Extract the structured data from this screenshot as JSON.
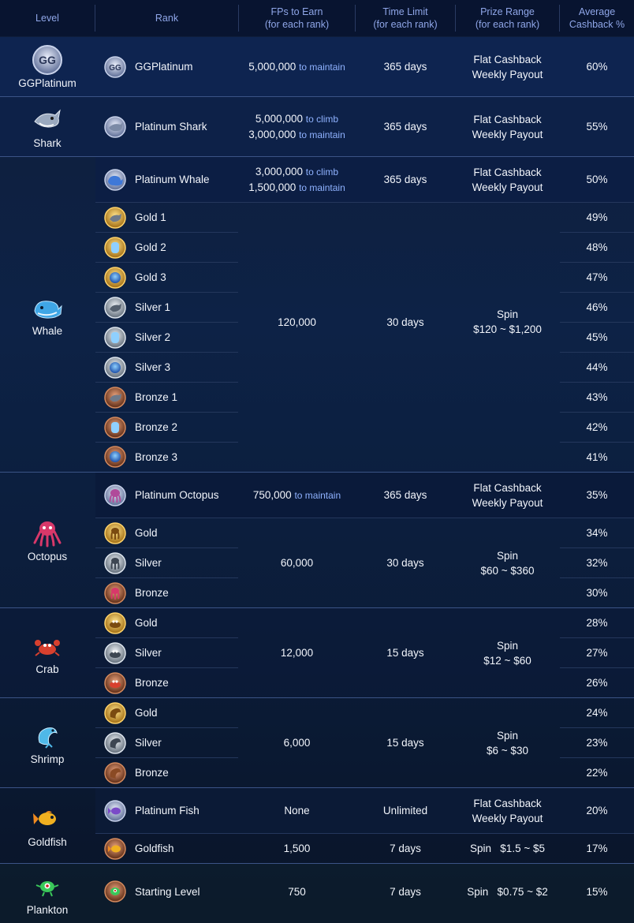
{
  "header": {
    "level": "Level",
    "rank": "Rank",
    "fps_1": "FPs to Earn",
    "fps_2": "(for each rank)",
    "time_1": "Time Limit",
    "time_2": "(for each rank)",
    "prize_1": "Prize Range",
    "prize_2": "(for each rank)",
    "cash_1": "Average",
    "cash_2": "Cashback %"
  },
  "levels": {
    "ggplatinum": "GGPlatinum",
    "shark": "Shark",
    "whale": "Whale",
    "octopus": "Octopus",
    "crab": "Crab",
    "shrimp": "Shrimp",
    "goldfish": "Goldfish",
    "plankton": "Plankton"
  },
  "rows": {
    "ggplatinum": {
      "rank": "GGPlatinum",
      "fps": "5,000,000",
      "fps_note": "to maintain",
      "time": "365 days",
      "prize_1": "Flat Cashback",
      "prize_2": "Weekly Payout",
      "cash": "60%"
    },
    "shark": {
      "rank": "Platinum Shark",
      "fps_a": "5,000,000",
      "fps_a_note": "to climb",
      "fps_b": "3,000,000",
      "fps_b_note": "to maintain",
      "time": "365 days",
      "prize_1": "Flat Cashback",
      "prize_2": "Weekly Payout",
      "cash": "55%"
    },
    "whale_plat": {
      "rank": "Platinum Whale",
      "fps_a": "3,000,000",
      "fps_a_note": "to climb",
      "fps_b": "1,500,000",
      "fps_b_note": "to maintain",
      "time": "365 days",
      "prize_1": "Flat Cashback",
      "prize_2": "Weekly Payout",
      "cash": "50%"
    },
    "whale_group": {
      "fps": "120,000",
      "time": "30 days",
      "prize_1": "Spin",
      "prize_2": "$120 ~ $1,200"
    },
    "whale_ranks": [
      {
        "rank": "Gold 1",
        "cash": "49%"
      },
      {
        "rank": "Gold 2",
        "cash": "48%"
      },
      {
        "rank": "Gold 3",
        "cash": "47%"
      },
      {
        "rank": "Silver 1",
        "cash": "46%"
      },
      {
        "rank": "Silver 2",
        "cash": "45%"
      },
      {
        "rank": "Silver 3",
        "cash": "44%"
      },
      {
        "rank": "Bronze 1",
        "cash": "43%"
      },
      {
        "rank": "Bronze 2",
        "cash": "42%"
      },
      {
        "rank": "Bronze 3",
        "cash": "41%"
      }
    ],
    "octo_plat": {
      "rank": "Platinum Octopus",
      "fps": "750,000",
      "fps_note": "to maintain",
      "time": "365 days",
      "prize_1": "Flat Cashback",
      "prize_2": "Weekly Payout",
      "cash": "35%"
    },
    "octo_group": {
      "fps": "60,000",
      "time": "30 days",
      "prize_1": "Spin",
      "prize_2": "$60 ~ $360"
    },
    "octo_ranks": [
      {
        "rank": "Gold",
        "cash": "34%"
      },
      {
        "rank": "Silver",
        "cash": "32%"
      },
      {
        "rank": "Bronze",
        "cash": "30%"
      }
    ],
    "crab_group": {
      "fps": "12,000",
      "time": "15 days",
      "prize_1": "Spin",
      "prize_2": "$12 ~ $60"
    },
    "crab_ranks": [
      {
        "rank": "Gold",
        "cash": "28%"
      },
      {
        "rank": "Silver",
        "cash": "27%"
      },
      {
        "rank": "Bronze",
        "cash": "26%"
      }
    ],
    "shrimp_group": {
      "fps": "6,000",
      "time": "15 days",
      "prize_1": "Spin",
      "prize_2": "$6 ~ $30"
    },
    "shrimp_ranks": [
      {
        "rank": "Gold",
        "cash": "24%"
      },
      {
        "rank": "Silver",
        "cash": "23%"
      },
      {
        "rank": "Bronze",
        "cash": "22%"
      }
    ],
    "fish_plat": {
      "rank": "Platinum Fish",
      "fps": "None",
      "time": "Unlimited",
      "prize_1": "Flat Cashback",
      "prize_2": "Weekly Payout",
      "cash": "20%"
    },
    "goldfish": {
      "rank": "Goldfish",
      "fps": "1,500",
      "time": "7 days",
      "prize_1": "Spin",
      "prize_2": "$1.5 ~ $5",
      "cash": "17%"
    },
    "plankton": {
      "rank": "Starting Level",
      "fps": "750",
      "time": "7 days",
      "prize_1": "Spin",
      "prize_2": "$0.75 ~ $2",
      "cash": "15%"
    }
  },
  "colors": {
    "header_text": "#8fa6e8",
    "note_text": "#8fb2ff",
    "gold": "#e8b02a",
    "silver": "#a9b4c2",
    "bronze": "#b5643a",
    "platinum": "#9fb4ff"
  }
}
